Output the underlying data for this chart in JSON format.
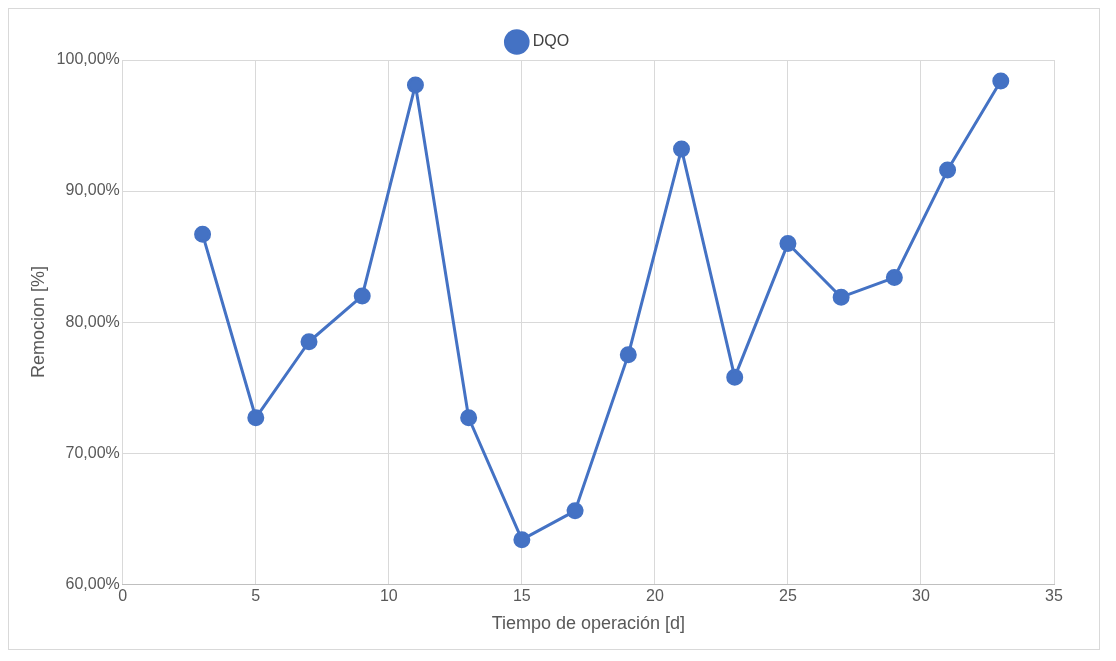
{
  "chart_data": {
    "type": "line",
    "xlabel": "Tiempo de operación [d]",
    "ylabel": "Remocion [%]",
    "x": [
      3,
      5,
      7,
      9,
      11,
      13,
      15,
      17,
      19,
      21,
      23,
      25,
      27,
      29,
      31,
      33
    ],
    "series": [
      {
        "name": "DQO",
        "color": "#4472c4",
        "values": [
          86.7,
          72.7,
          78.5,
          82.0,
          98.1,
          72.7,
          63.4,
          65.6,
          77.5,
          93.2,
          75.8,
          86.0,
          81.9,
          83.4,
          91.6,
          98.4
        ]
      }
    ],
    "xlim": [
      0,
      35
    ],
    "xticks": [
      0,
      5,
      10,
      15,
      20,
      25,
      30,
      35
    ],
    "ylim": [
      60,
      100
    ],
    "yticks": [
      {
        "value": 60,
        "label": "60,00%"
      },
      {
        "value": 70,
        "label": "70,00%"
      },
      {
        "value": 80,
        "label": "80,00%"
      },
      {
        "value": 90,
        "label": "90,00%"
      },
      {
        "value": 100,
        "label": "100,00%"
      }
    ],
    "grid": true,
    "legend": "top",
    "marker": "circle",
    "line_style": "solid"
  }
}
